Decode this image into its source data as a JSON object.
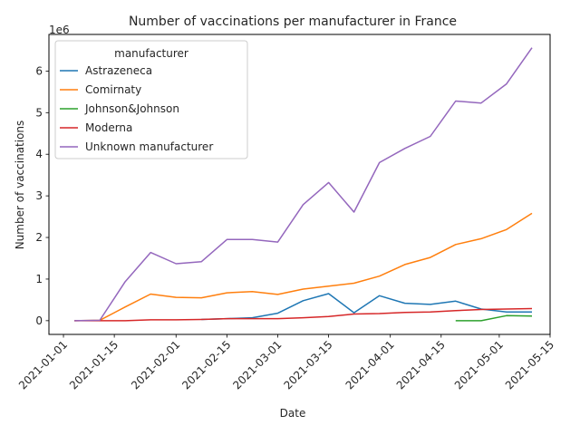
{
  "chart_data": {
    "type": "line",
    "title": "Number of vaccinations per manufacturer in France",
    "xlabel": "Date",
    "ylabel": "Number of vaccinations",
    "y_offset_label": "1e6",
    "y_scale_multiplier": 1000000,
    "xlim": [
      "2020-12-28",
      "2021-05-15"
    ],
    "ylim": [
      -0.33,
      6.88
    ],
    "x_ticks": [
      "2021-01-01",
      "2021-01-15",
      "2021-02-01",
      "2021-02-15",
      "2021-03-01",
      "2021-03-15",
      "2021-04-01",
      "2021-04-15",
      "2021-05-01",
      "2021-05-15"
    ],
    "y_ticks": [
      0,
      1,
      2,
      3,
      4,
      5,
      6
    ],
    "grid": false,
    "legend": {
      "title": "manufacturer",
      "placement": "upper-left"
    },
    "series": [
      {
        "name": "Astrazeneca",
        "color": "#1f77b4",
        "x": [
          "2021-02-08",
          "2021-02-15",
          "2021-02-22",
          "2021-03-01",
          "2021-03-08",
          "2021-03-15",
          "2021-03-22",
          "2021-03-29",
          "2021-04-05",
          "2021-04-12",
          "2021-04-19",
          "2021-04-26",
          "2021-05-03",
          "2021-05-10"
        ],
        "values": [
          0.03,
          0.05,
          0.07,
          0.18,
          0.48,
          0.65,
          0.19,
          0.6,
          0.42,
          0.39,
          0.47,
          0.28,
          0.21,
          0.21
        ]
      },
      {
        "name": "Comirnaty",
        "color": "#ff7f0e",
        "x": [
          "2021-01-04",
          "2021-01-11",
          "2021-01-18",
          "2021-01-25",
          "2021-02-01",
          "2021-02-08",
          "2021-02-15",
          "2021-02-22",
          "2021-03-01",
          "2021-03-08",
          "2021-03-15",
          "2021-03-22",
          "2021-03-29",
          "2021-04-05",
          "2021-04-12",
          "2021-04-19",
          "2021-04-26",
          "2021-05-03",
          "2021-05-10"
        ],
        "values": [
          0.0,
          0.01,
          0.33,
          0.64,
          0.56,
          0.55,
          0.67,
          0.7,
          0.63,
          0.76,
          0.83,
          0.9,
          1.07,
          1.35,
          1.52,
          1.83,
          1.97,
          2.19,
          2.58
        ]
      },
      {
        "name": "Johnson&Johnson",
        "color": "#2ca02c",
        "x": [
          "2021-04-19",
          "2021-04-26",
          "2021-05-03",
          "2021-05-10"
        ],
        "values": [
          0.0,
          0.0,
          0.12,
          0.11
        ]
      },
      {
        "name": "Moderna",
        "color": "#d62728",
        "x": [
          "2021-01-04",
          "2021-01-11",
          "2021-01-18",
          "2021-01-25",
          "2021-02-01",
          "2021-02-08",
          "2021-02-15",
          "2021-02-22",
          "2021-03-01",
          "2021-03-08",
          "2021-03-15",
          "2021-03-22",
          "2021-03-29",
          "2021-04-05",
          "2021-04-12",
          "2021-04-19",
          "2021-04-26",
          "2021-05-03",
          "2021-05-10"
        ],
        "values": [
          0.0,
          0.0,
          0.0,
          0.02,
          0.02,
          0.03,
          0.05,
          0.05,
          0.05,
          0.07,
          0.1,
          0.16,
          0.17,
          0.2,
          0.21,
          0.24,
          0.27,
          0.28,
          0.29
        ]
      },
      {
        "name": "Unknown manufacturer",
        "color": "#9467bd",
        "x": [
          "2021-01-04",
          "2021-01-11",
          "2021-01-18",
          "2021-01-25",
          "2021-02-01",
          "2021-02-08",
          "2021-02-15",
          "2021-02-22",
          "2021-03-01",
          "2021-03-08",
          "2021-03-15",
          "2021-03-22",
          "2021-03-29",
          "2021-04-05",
          "2021-04-12",
          "2021-04-19",
          "2021-04-26",
          "2021-05-03",
          "2021-05-10"
        ],
        "values": [
          0.0,
          0.01,
          0.94,
          1.64,
          1.37,
          1.42,
          1.95,
          1.95,
          1.89,
          2.79,
          3.32,
          2.61,
          3.8,
          4.14,
          4.43,
          5.28,
          5.23,
          5.69,
          6.56
        ]
      }
    ]
  }
}
